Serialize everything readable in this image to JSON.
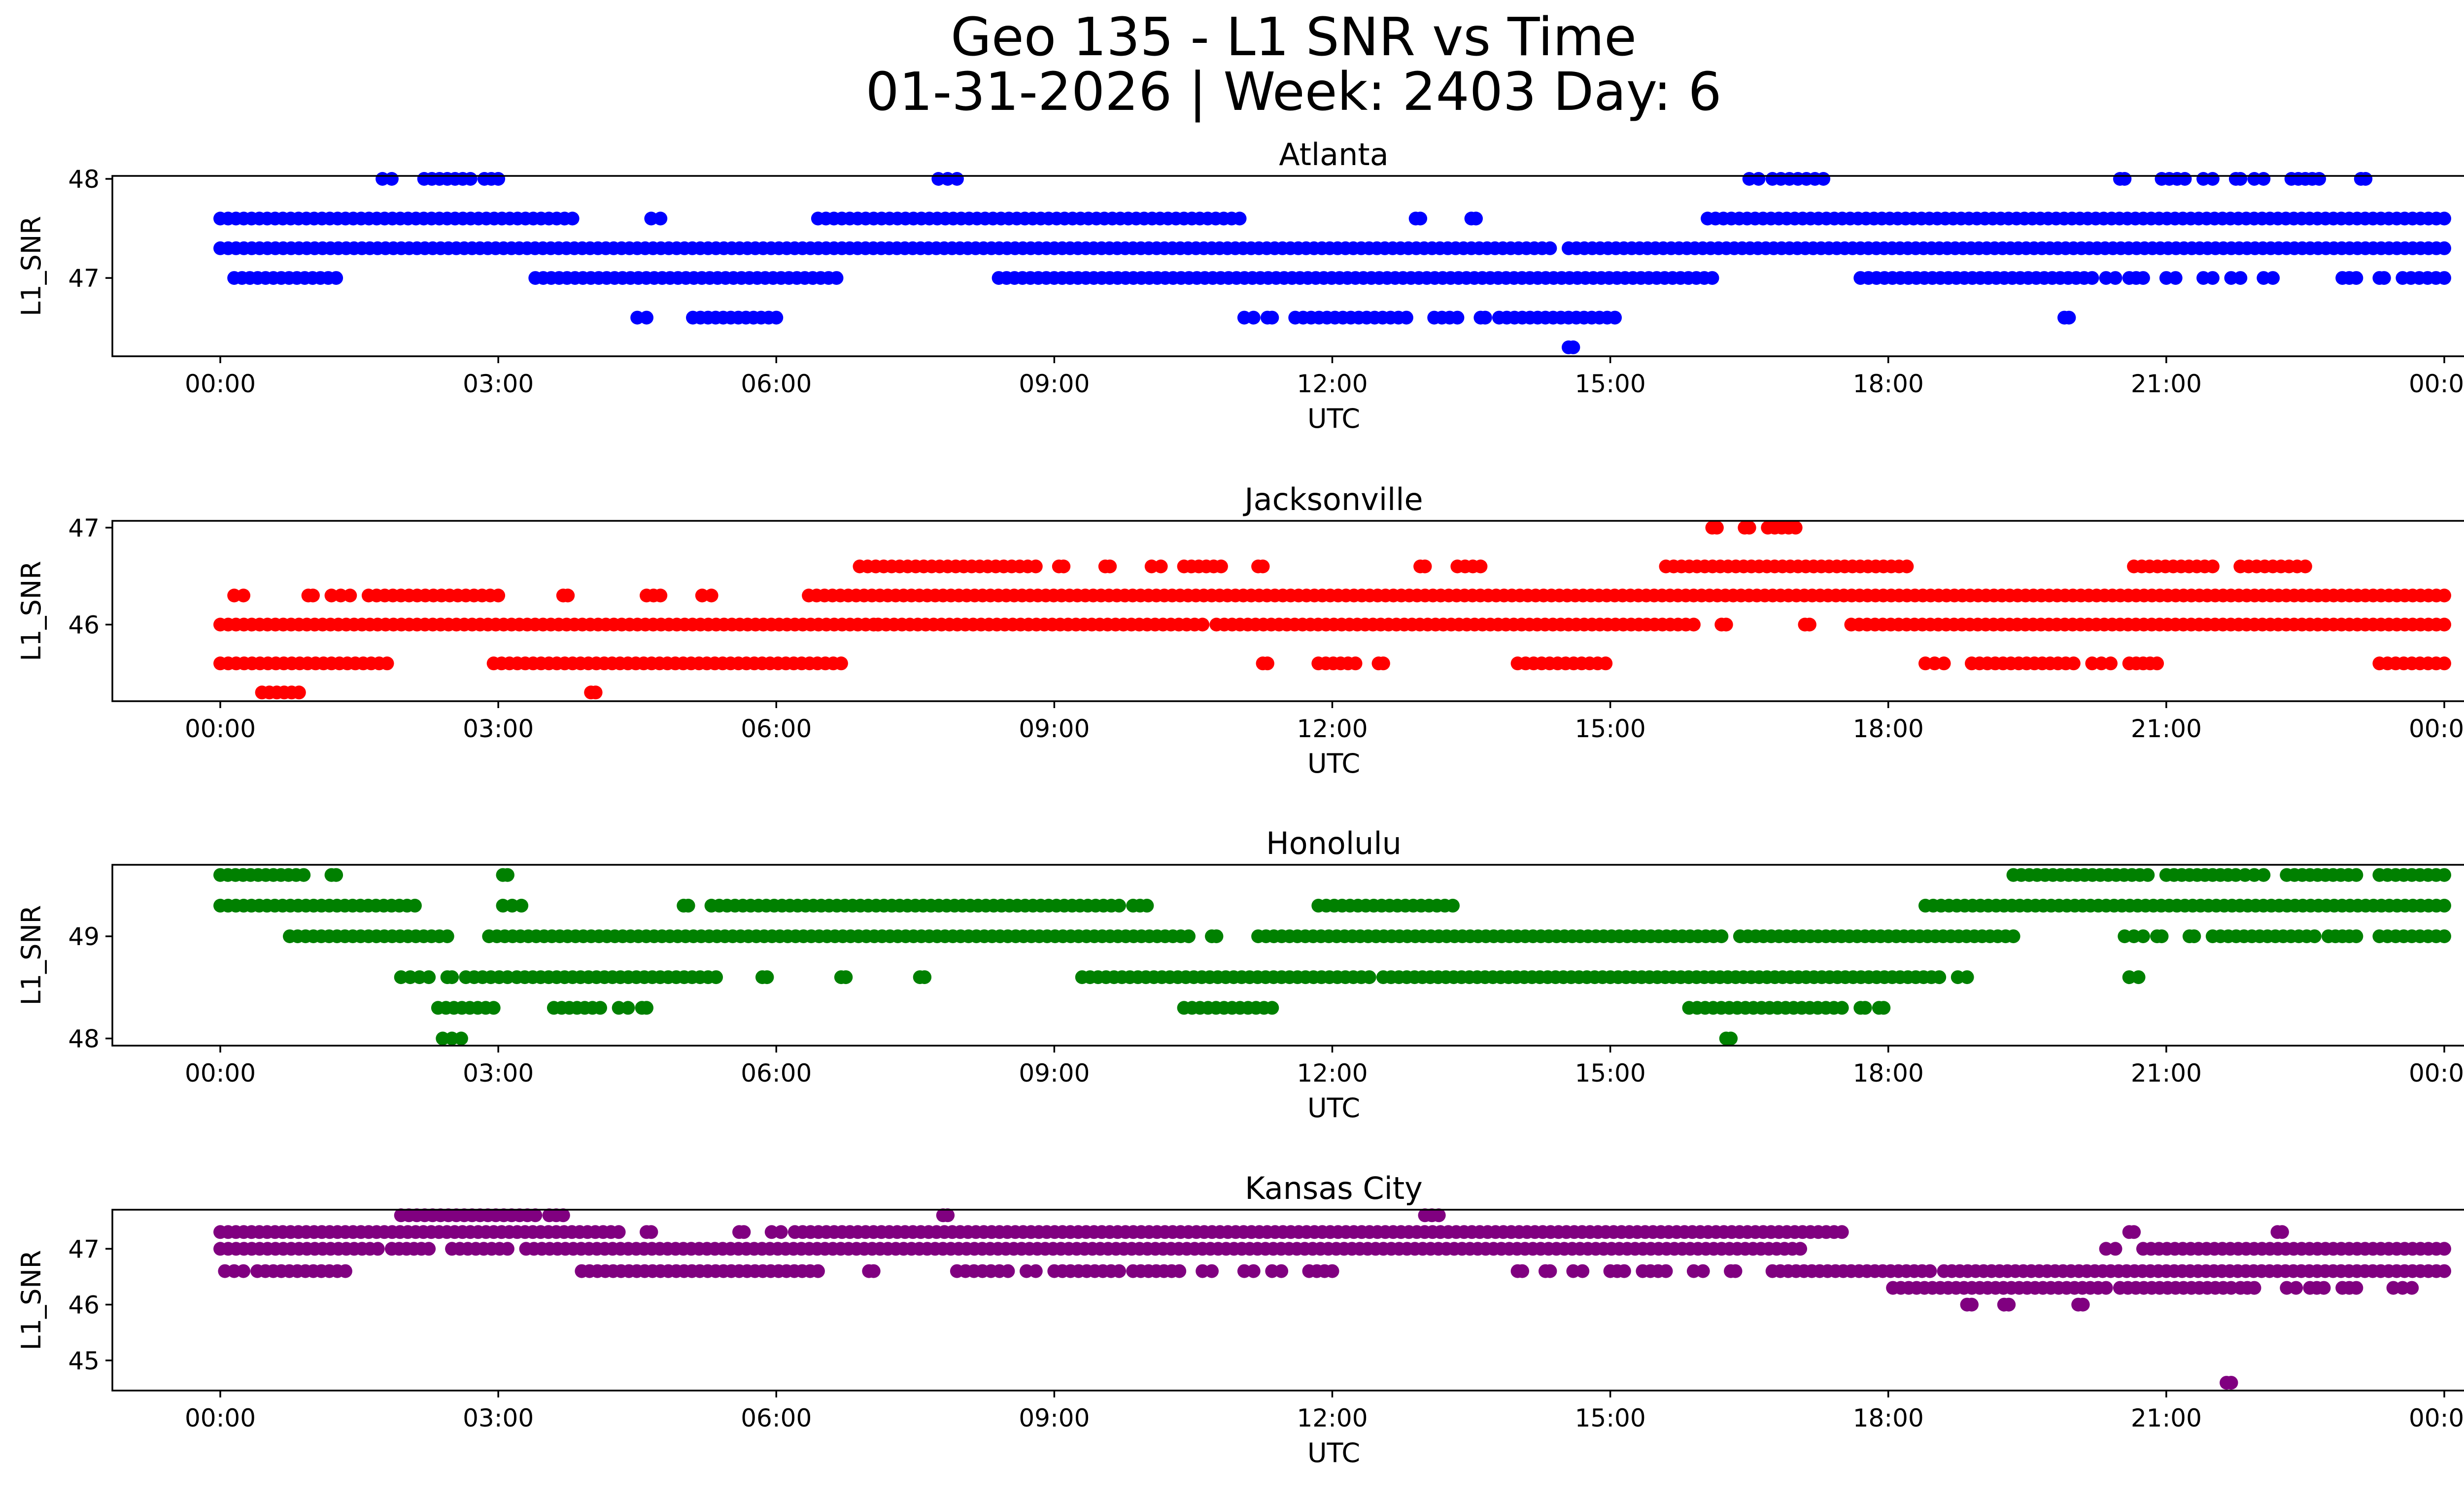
{
  "chart_data": {
    "type": "scatter",
    "title": "Geo 135 - L1 SNR vs Time",
    "subtitle": "01-31-2026 | Week: 2403 Day: 6",
    "x_range_hours": [
      0,
      24
    ],
    "x_ticks": [
      {
        "hour": 0,
        "label": "00:00"
      },
      {
        "hour": 3,
        "label": "03:00"
      },
      {
        "hour": 6,
        "label": "06:00"
      },
      {
        "hour": 9,
        "label": "09:00"
      },
      {
        "hour": 12,
        "label": "12:00"
      },
      {
        "hour": 15,
        "label": "15:00"
      },
      {
        "hour": 18,
        "label": "18:00"
      },
      {
        "hour": 21,
        "label": "21:00"
      },
      {
        "hour": 24,
        "label": "00:00"
      }
    ],
    "panels": [
      {
        "title": "Atlanta",
        "xlabel": "UTC",
        "ylabel": "L1_SNR",
        "color": "#0000ff",
        "ylim": [
          46.21,
          48.03
        ],
        "y_ticks": [
          {
            "value": 47,
            "label": "47"
          },
          {
            "value": 48,
            "label": "48"
          }
        ],
        "series": [
          {
            "y": 48.0,
            "segments": [
              [
                1.75,
                1.85
              ],
              [
                2.2,
                2.7
              ],
              [
                2.85,
                3.0
              ],
              [
                7.75,
                7.95
              ],
              [
                16.5,
                16.6
              ],
              [
                16.75,
                17.3
              ],
              [
                20.5,
                20.55
              ],
              [
                20.95,
                21.2
              ],
              [
                21.4,
                21.5
              ],
              [
                21.75,
                21.8
              ],
              [
                21.95,
                22.05
              ],
              [
                22.35,
                22.65
              ],
              [
                23.1,
                23.15
              ]
            ]
          },
          {
            "y": 47.6,
            "segments": [
              [
                0.0,
                3.8
              ],
              [
                4.65,
                4.75
              ],
              [
                6.45,
                11.0
              ],
              [
                12.9,
                12.95
              ],
              [
                13.5,
                13.55
              ],
              [
                16.05,
                24.0
              ]
            ]
          },
          {
            "y": 47.3,
            "segments": [
              [
                0.0,
                14.35
              ],
              [
                14.55,
                24.0
              ]
            ]
          },
          {
            "y": 47.0,
            "segments": [
              [
                0.15,
                1.25
              ],
              [
                3.4,
                6.65
              ],
              [
                8.4,
                16.1
              ],
              [
                17.7,
                20.2
              ],
              [
                20.35,
                20.45
              ],
              [
                20.6,
                20.75
              ],
              [
                21.0,
                21.1
              ],
              [
                21.4,
                21.5
              ],
              [
                21.7,
                21.8
              ],
              [
                22.05,
                22.15
              ],
              [
                22.9,
                23.05
              ],
              [
                23.3,
                23.35
              ],
              [
                23.55,
                24.0
              ]
            ]
          },
          {
            "y": 46.6,
            "segments": [
              [
                4.5,
                4.6
              ],
              [
                5.1,
                6.0
              ],
              [
                11.05,
                11.15
              ],
              [
                11.3,
                11.35
              ],
              [
                11.6,
                12.8
              ],
              [
                13.1,
                13.35
              ],
              [
                13.6,
                13.65
              ],
              [
                13.8,
                15.05
              ],
              [
                19.9,
                19.95
              ]
            ]
          },
          {
            "y": 46.3,
            "segments": [
              [
                14.55,
                14.6
              ]
            ]
          }
        ]
      },
      {
        "title": "Jacksonville",
        "xlabel": "UTC",
        "ylabel": "L1_SNR",
        "color": "#ff0000",
        "ylim": [
          45.21,
          47.07
        ],
        "y_ticks": [
          {
            "value": 46,
            "label": "46"
          },
          {
            "value": 47,
            "label": "47"
          }
        ],
        "series": [
          {
            "y": 47.0,
            "segments": [
              [
                16.1,
                16.15
              ],
              [
                16.45,
                16.5
              ],
              [
                16.7,
                17.0
              ]
            ]
          },
          {
            "y": 46.6,
            "segments": [
              [
                6.9,
                8.8
              ],
              [
                9.05,
                9.1
              ],
              [
                9.55,
                9.6
              ],
              [
                10.05,
                10.15
              ],
              [
                10.4,
                10.8
              ],
              [
                11.2,
                11.25
              ],
              [
                12.95,
                13.0
              ],
              [
                13.35,
                13.6
              ],
              [
                15.6,
                18.2
              ],
              [
                20.65,
                21.5
              ],
              [
                21.8,
                22.5
              ]
            ]
          },
          {
            "y": 46.3,
            "segments": [
              [
                0.15,
                0.25
              ],
              [
                0.95,
                1.0
              ],
              [
                1.2,
                1.4
              ],
              [
                1.6,
                3.0
              ],
              [
                3.7,
                3.75
              ],
              [
                4.6,
                4.75
              ],
              [
                5.2,
                5.3
              ],
              [
                6.35,
                24.0
              ]
            ]
          },
          {
            "y": 46.0,
            "segments": [
              [
                0.0,
                7.05
              ],
              [
                7.1,
                10.6
              ],
              [
                10.75,
                15.9
              ],
              [
                16.2,
                16.25
              ],
              [
                17.1,
                17.15
              ],
              [
                17.6,
                24.0
              ]
            ]
          },
          {
            "y": 45.6,
            "segments": [
              [
                0.0,
                1.8
              ],
              [
                2.95,
                6.7
              ],
              [
                11.25,
                11.3
              ],
              [
                11.85,
                12.25
              ],
              [
                12.5,
                12.55
              ],
              [
                14.0,
                14.95
              ],
              [
                18.4,
                18.6
              ],
              [
                18.9,
                20.0
              ],
              [
                20.2,
                20.4
              ],
              [
                20.6,
                20.9
              ],
              [
                23.3,
                24.0
              ]
            ]
          },
          {
            "y": 45.3,
            "segments": [
              [
                0.45,
                0.85
              ],
              [
                4.0,
                4.05
              ]
            ]
          }
        ]
      },
      {
        "title": "Honolulu",
        "xlabel": "UTC",
        "ylabel": "L1_SNR",
        "color": "#008000",
        "ylim": [
          47.93,
          49.7
        ],
        "y_ticks": [
          {
            "value": 48,
            "label": "48"
          },
          {
            "value": 49,
            "label": "49"
          }
        ],
        "series": [
          {
            "y": 49.6,
            "segments": [
              [
                0.0,
                0.9
              ],
              [
                1.2,
                1.25
              ],
              [
                3.05,
                3.1
              ],
              [
                19.35,
                20.8
              ],
              [
                21.0,
                21.75
              ],
              [
                21.85,
                22.05
              ],
              [
                22.3,
                23.05
              ],
              [
                23.3,
                24.0
              ]
            ]
          },
          {
            "y": 49.3,
            "segments": [
              [
                0.0,
                2.1
              ],
              [
                3.05,
                3.25
              ],
              [
                5.0,
                5.05
              ],
              [
                5.3,
                9.7
              ],
              [
                9.85,
                10.0
              ],
              [
                11.85,
                13.3
              ],
              [
                18.4,
                24.0
              ]
            ]
          },
          {
            "y": 49.0,
            "segments": [
              [
                0.75,
                2.45
              ],
              [
                2.9,
                10.45
              ],
              [
                10.7,
                10.75
              ],
              [
                11.2,
                16.2
              ],
              [
                16.4,
                19.35
              ],
              [
                20.55,
                20.75
              ],
              [
                20.9,
                20.95
              ],
              [
                21.25,
                21.3
              ],
              [
                21.5,
                22.6
              ],
              [
                22.75,
                23.05
              ],
              [
                23.3,
                24.0
              ]
            ]
          },
          {
            "y": 48.6,
            "segments": [
              [
                1.95,
                2.05
              ],
              [
                2.15,
                2.25
              ],
              [
                2.45,
                2.5
              ],
              [
                2.65,
                3.1
              ],
              [
                3.2,
                5.35
              ],
              [
                5.85,
                5.9
              ],
              [
                6.7,
                6.75
              ],
              [
                7.55,
                7.6
              ],
              [
                9.3,
                12.4
              ],
              [
                12.55,
                18.55
              ],
              [
                18.75,
                18.85
              ],
              [
                20.6,
                20.7
              ]
            ]
          },
          {
            "y": 48.3,
            "segments": [
              [
                2.35,
                2.95
              ],
              [
                3.6,
                4.1
              ],
              [
                4.3,
                4.4
              ],
              [
                4.55,
                4.6
              ],
              [
                10.4,
                11.35
              ],
              [
                15.85,
                17.5
              ],
              [
                17.7,
                17.75
              ],
              [
                17.9,
                17.95
              ]
            ]
          },
          {
            "y": 48.0,
            "segments": [
              [
                2.4,
                2.6
              ],
              [
                16.25,
                16.3
              ]
            ]
          }
        ]
      },
      {
        "title": "Kansas City",
        "xlabel": "UTC",
        "ylabel": "L1_SNR",
        "color": "#800080",
        "ylim": [
          44.46,
          47.7
        ],
        "y_ticks": [
          {
            "value": 45,
            "label": "45"
          },
          {
            "value": 46,
            "label": "46"
          },
          {
            "value": 47,
            "label": "47"
          }
        ],
        "series": [
          {
            "y": 47.6,
            "segments": [
              [
                1.95,
                3.4
              ],
              [
                3.55,
                3.7
              ],
              [
                7.8,
                7.85
              ],
              [
                13.0,
                13.15
              ]
            ]
          },
          {
            "y": 47.3,
            "segments": [
              [
                0.0,
                4.3
              ],
              [
                4.6,
                4.65
              ],
              [
                5.6,
                5.65
              ],
              [
                5.95,
                6.05
              ],
              [
                6.2,
                17.5
              ],
              [
                20.6,
                20.65
              ],
              [
                22.2,
                22.25
              ]
            ]
          },
          {
            "y": 47.0,
            "segments": [
              [
                0.0,
                1.7
              ],
              [
                1.85,
                2.25
              ],
              [
                2.5,
                3.1
              ],
              [
                3.3,
                17.05
              ],
              [
                20.35,
                20.45
              ],
              [
                20.75,
                24.0
              ]
            ]
          },
          {
            "y": 46.6,
            "segments": [
              [
                0.05,
                0.25
              ],
              [
                0.4,
                1.35
              ],
              [
                3.9,
                6.45
              ],
              [
                7.0,
                7.05
              ],
              [
                7.95,
                8.5
              ],
              [
                8.7,
                8.8
              ],
              [
                9.0,
                9.7
              ],
              [
                9.85,
                10.35
              ],
              [
                10.6,
                10.7
              ],
              [
                11.05,
                11.15
              ],
              [
                11.35,
                11.45
              ],
              [
                11.75,
                12.0
              ],
              [
                14.0,
                14.05
              ],
              [
                14.3,
                14.35
              ],
              [
                14.6,
                14.7
              ],
              [
                15.0,
                15.15
              ],
              [
                15.35,
                15.6
              ],
              [
                15.9,
                16.0
              ],
              [
                16.3,
                16.35
              ],
              [
                16.75,
                18.45
              ],
              [
                18.6,
                24.0
              ]
            ]
          },
          {
            "y": 46.3,
            "segments": [
              [
                18.05,
                20.35
              ],
              [
                20.5,
                21.7
              ],
              [
                21.8,
                21.95
              ],
              [
                22.3,
                22.4
              ],
              [
                22.55,
                22.7
              ],
              [
                22.9,
                23.05
              ],
              [
                23.45,
                23.65
              ]
            ]
          },
          {
            "y": 46.0,
            "segments": [
              [
                18.85,
                18.9
              ],
              [
                19.25,
                19.3
              ],
              [
                20.05,
                20.1
              ]
            ]
          },
          {
            "y": 44.6,
            "segments": [
              [
                21.65,
                21.7
              ]
            ]
          }
        ]
      }
    ]
  }
}
